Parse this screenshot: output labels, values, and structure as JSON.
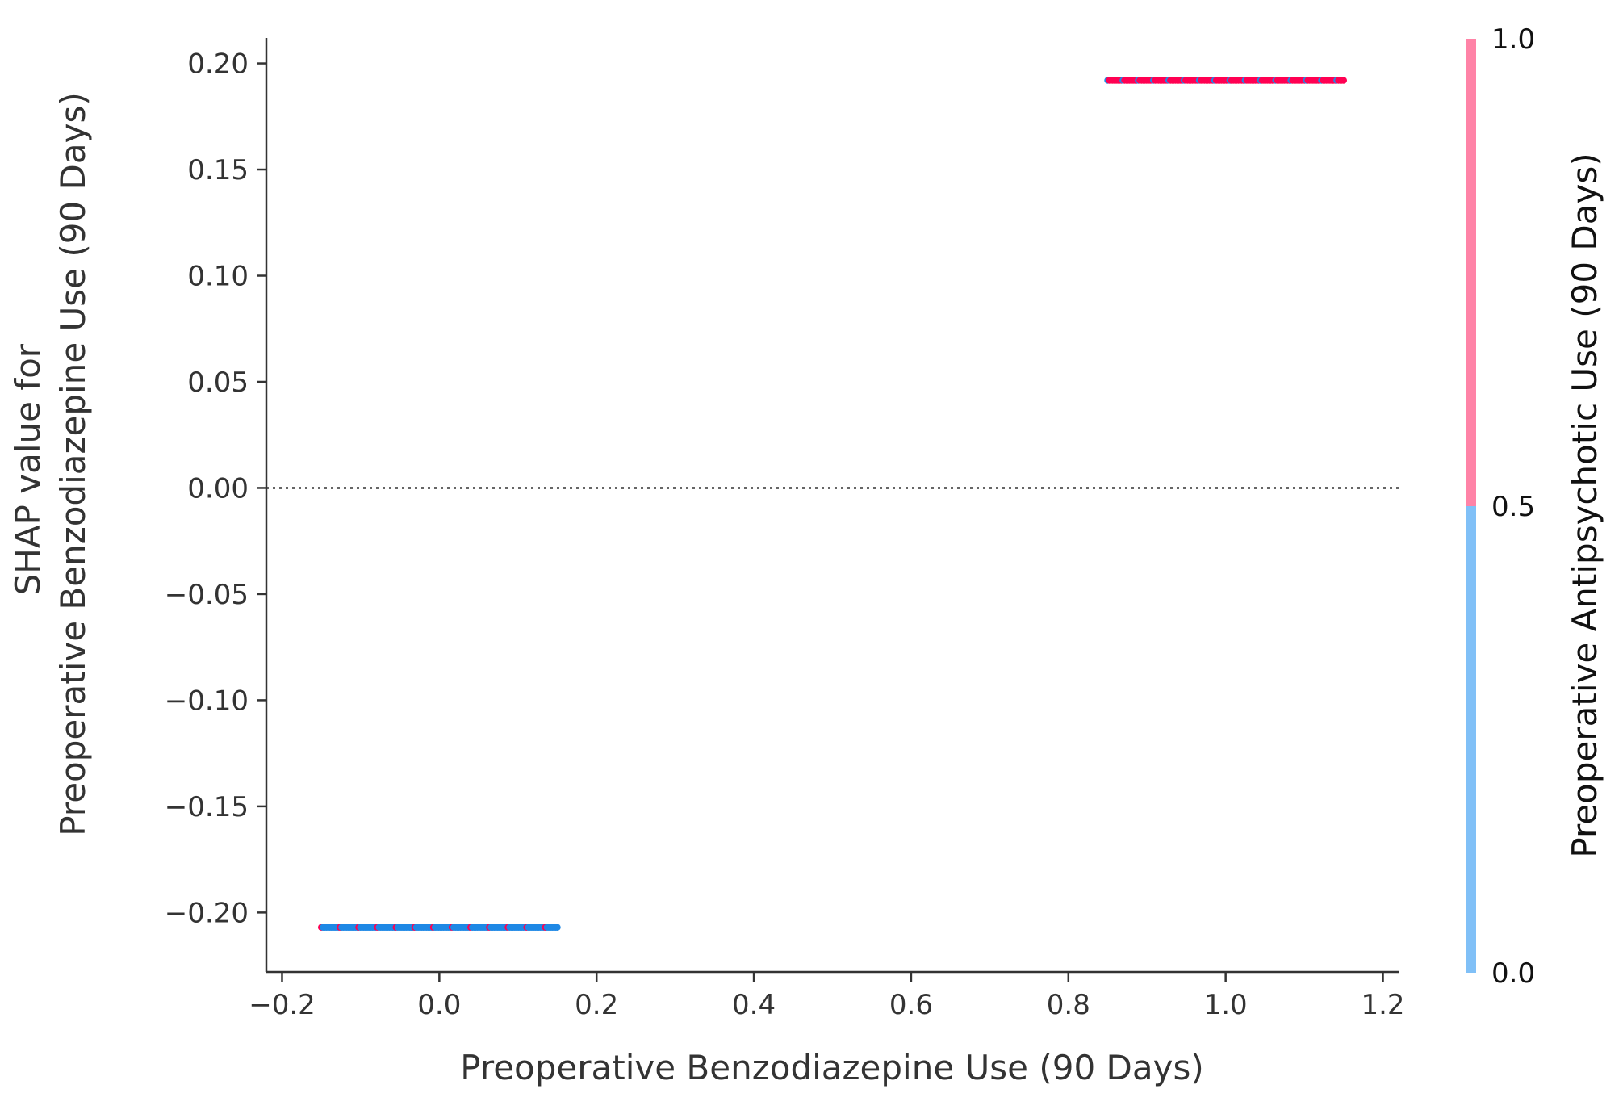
{
  "chart_data": {
    "type": "scatter",
    "xlabel": "Preoperative Benzodiazepine Use (90 Days)",
    "ylabel_lines": [
      "SHAP value for",
      "Preoperative Benzodiazepine Use (90 Days)"
    ],
    "colorbar_label": "Preoperative Antipsychotic Use (90 Days)",
    "xlim": [
      -0.22,
      1.22
    ],
    "ylim": [
      -0.228,
      0.212
    ],
    "x_ticks": [
      -0.2,
      0.0,
      0.2,
      0.4,
      0.6,
      0.8,
      1.0,
      1.2
    ],
    "x_tick_labels": [
      "−0.2",
      "0.0",
      "0.2",
      "0.4",
      "0.6",
      "0.8",
      "1.0",
      "1.2"
    ],
    "y_ticks": [
      0.2,
      0.15,
      0.1,
      0.05,
      0.0,
      -0.05,
      -0.1,
      -0.15,
      -0.2
    ],
    "y_tick_labels": [
      "0.20",
      "0.15",
      "0.10",
      "0.05",
      "0.00",
      "−0.05",
      "−0.10",
      "−0.15",
      "−0.20"
    ],
    "colorbar_ticks": [
      "1.0",
      "0.5",
      "0.0"
    ],
    "colorbar_range": [
      0.0,
      1.0
    ],
    "colors": {
      "low": "#80c0f7",
      "high": "#ff83a7",
      "low_point": "#1e88e5",
      "high_point": "#ff0052"
    },
    "zero_line": {
      "y": 0.0,
      "style": "dotted"
    },
    "series": [
      {
        "x_min": -0.15,
        "x_max": 0.15,
        "y": -0.207
      },
      {
        "x_min": 0.85,
        "x_max": 1.15,
        "y": 0.192
      }
    ],
    "grid": false
  }
}
